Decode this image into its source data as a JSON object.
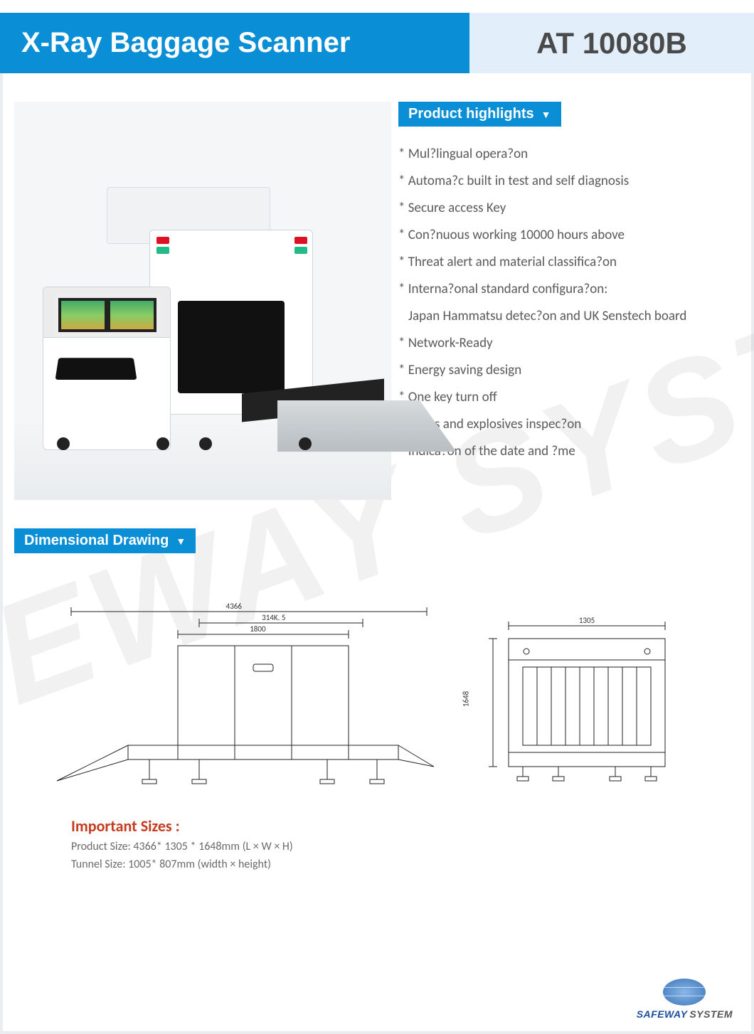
{
  "header": {
    "title": "X-Ray Baggage Scanner",
    "model": "AT 10080B",
    "left_bg": "#0a8fd6",
    "right_bg": "#e2effa",
    "title_color": "#ffffff",
    "model_color": "#4a4a4a"
  },
  "watermark_text": "SAFEWAY SYSTEM",
  "highlights": {
    "badge_label": "Product highlights",
    "items": [
      "Mul?lingual opera?on",
      "Automa?c built in test and self diagnosis",
      "Secure access Key",
      "Con?nuous working 10000 hours above",
      "Threat alert and material classifica?on",
      "Interna?onal standard configura?on:",
      "Network-Ready",
      "Energy saving design",
      "One key turn off",
      "Drugs and explosives inspec?on",
      "Indica?on of the date and ?me"
    ],
    "sub_after_index": 5,
    "sub_text": "Japan Hammatsu detec?on and UK Senstech board",
    "text_color": "#5a5a5a",
    "badge_bg": "#0a8fd6"
  },
  "dimensional": {
    "badge_label": "Dimensional Drawing",
    "front": {
      "dim_total": "4366",
      "dim_upper": "314K. 5",
      "dim_body": "1800"
    },
    "side": {
      "dim_width": "1305",
      "dim_height": "1648"
    },
    "line_color": "#222222"
  },
  "sizes": {
    "title": "Important Sizes :",
    "product_size": "Product Size: 4366* 1305 * 1648mm (L × W × H)",
    "tunnel_size": "Tunnel Size: 1005* 807mm (width × height)",
    "title_color": "#c63a1e"
  },
  "footer": {
    "brand_a": "SAFEWAY",
    "brand_b": "SYSTEM"
  }
}
